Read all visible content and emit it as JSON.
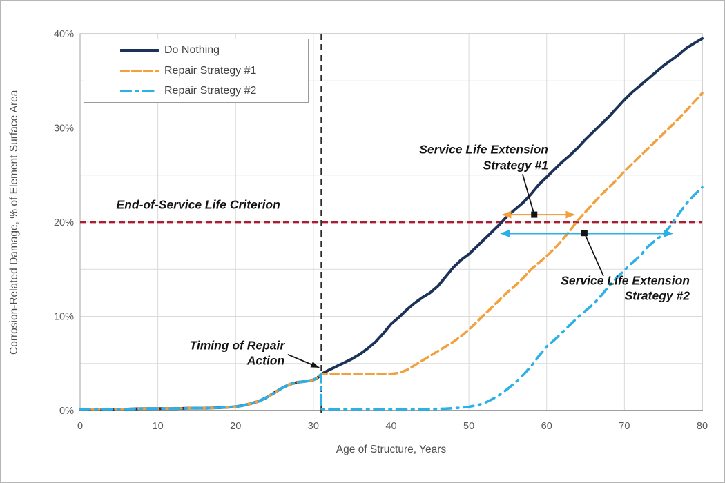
{
  "chart_data": {
    "type": "line",
    "title": "",
    "xlabel": "Age of Structure, Years",
    "ylabel": "Corrosion-Related Damage, % of Element Surface Area",
    "xlim": [
      0,
      80
    ],
    "ylim": [
      0,
      40
    ],
    "x_ticks": [
      0,
      10,
      20,
      30,
      40,
      50,
      60,
      70,
      80
    ],
    "y_ticks": [
      {
        "value": 0,
        "label": "0%"
      },
      {
        "value": 10,
        "label": "10%"
      },
      {
        "value": 20,
        "label": "20%"
      },
      {
        "value": 30,
        "label": "30%"
      },
      {
        "value": 40,
        "label": "40%"
      }
    ],
    "grid": {
      "on": true,
      "x_interval": 10,
      "y_interval": 5,
      "color": "#dadada"
    },
    "axis_colors": {
      "border": "#bfbfbf",
      "baseline": "#8a8a8a",
      "tick_text": "#595959",
      "title_text": "#4d4d4d"
    },
    "legend_position": "top-left",
    "series": [
      {
        "name": "Do Nothing",
        "color": "#1c3258",
        "style": "solid",
        "width": 4,
        "points": [
          [
            0,
            0.15
          ],
          [
            2,
            0.15
          ],
          [
            4,
            0.15
          ],
          [
            6,
            0.15
          ],
          [
            8,
            0.2
          ],
          [
            10,
            0.2
          ],
          [
            12,
            0.2
          ],
          [
            14,
            0.25
          ],
          [
            16,
            0.25
          ],
          [
            18,
            0.3
          ],
          [
            19,
            0.35
          ],
          [
            20,
            0.4
          ],
          [
            21,
            0.55
          ],
          [
            22,
            0.75
          ],
          [
            23,
            1.0
          ],
          [
            24,
            1.4
          ],
          [
            25,
            1.9
          ],
          [
            26,
            2.4
          ],
          [
            27,
            2.8
          ],
          [
            28,
            3.0
          ],
          [
            29,
            3.1
          ],
          [
            30,
            3.25
          ],
          [
            30.5,
            3.45
          ],
          [
            31,
            3.85
          ],
          [
            32,
            4.3
          ],
          [
            33,
            4.7
          ],
          [
            34,
            5.1
          ],
          [
            35,
            5.5
          ],
          [
            36,
            6.0
          ],
          [
            37,
            6.6
          ],
          [
            38,
            7.3
          ],
          [
            39,
            8.2
          ],
          [
            40,
            9.2
          ],
          [
            41,
            9.9
          ],
          [
            42,
            10.7
          ],
          [
            43,
            11.4
          ],
          [
            44,
            12.0
          ],
          [
            45,
            12.5
          ],
          [
            46,
            13.2
          ],
          [
            47,
            14.2
          ],
          [
            48,
            15.2
          ],
          [
            49,
            16.0
          ],
          [
            50,
            16.6
          ],
          [
            51,
            17.4
          ],
          [
            52,
            18.2
          ],
          [
            53,
            19.0
          ],
          [
            54,
            19.8
          ],
          [
            55,
            20.7
          ],
          [
            56,
            21.4
          ],
          [
            57,
            22.1
          ],
          [
            58,
            23.0
          ],
          [
            59,
            24.0
          ],
          [
            60,
            24.8
          ],
          [
            61,
            25.6
          ],
          [
            62,
            26.4
          ],
          [
            63,
            27.1
          ],
          [
            64,
            27.9
          ],
          [
            65,
            28.8
          ],
          [
            66,
            29.6
          ],
          [
            67,
            30.4
          ],
          [
            68,
            31.2
          ],
          [
            69,
            32.1
          ],
          [
            70,
            33.0
          ],
          [
            71,
            33.8
          ],
          [
            72,
            34.5
          ],
          [
            73,
            35.2
          ],
          [
            74,
            35.9
          ],
          [
            75,
            36.6
          ],
          [
            76,
            37.2
          ],
          [
            77,
            37.8
          ],
          [
            78,
            38.5
          ],
          [
            79,
            39.0
          ],
          [
            80,
            39.5
          ]
        ]
      },
      {
        "name": "Repair Strategy #1",
        "color": "#f2a13d",
        "style": "dashed",
        "width": 3.6,
        "points": [
          [
            0,
            0.15
          ],
          [
            2,
            0.15
          ],
          [
            4,
            0.15
          ],
          [
            6,
            0.15
          ],
          [
            8,
            0.2
          ],
          [
            10,
            0.2
          ],
          [
            12,
            0.2
          ],
          [
            14,
            0.25
          ],
          [
            16,
            0.25
          ],
          [
            18,
            0.3
          ],
          [
            19,
            0.35
          ],
          [
            20,
            0.4
          ],
          [
            21,
            0.55
          ],
          [
            22,
            0.75
          ],
          [
            23,
            1.0
          ],
          [
            24,
            1.4
          ],
          [
            25,
            1.9
          ],
          [
            26,
            2.4
          ],
          [
            27,
            2.8
          ],
          [
            28,
            3.0
          ],
          [
            29,
            3.1
          ],
          [
            30,
            3.25
          ],
          [
            30.5,
            3.45
          ],
          [
            31,
            3.85
          ],
          [
            31.5,
            3.9
          ],
          [
            33,
            3.9
          ],
          [
            35,
            3.9
          ],
          [
            37,
            3.9
          ],
          [
            39,
            3.9
          ],
          [
            40,
            3.9
          ],
          [
            41,
            4.0
          ],
          [
            42,
            4.3
          ],
          [
            43,
            4.8
          ],
          [
            44,
            5.3
          ],
          [
            45,
            5.8
          ],
          [
            46,
            6.3
          ],
          [
            47,
            6.8
          ],
          [
            48,
            7.3
          ],
          [
            49,
            7.9
          ],
          [
            50,
            8.6
          ],
          [
            51,
            9.4
          ],
          [
            52,
            10.2
          ],
          [
            53,
            11.0
          ],
          [
            54,
            11.8
          ],
          [
            55,
            12.6
          ],
          [
            56,
            13.3
          ],
          [
            57,
            14.1
          ],
          [
            58,
            15.0
          ],
          [
            59,
            15.7
          ],
          [
            60,
            16.4
          ],
          [
            61,
            17.2
          ],
          [
            62,
            18.1
          ],
          [
            63,
            19.1
          ],
          [
            64,
            20.2
          ],
          [
            65,
            21.1
          ],
          [
            66,
            22.0
          ],
          [
            67,
            22.9
          ],
          [
            68,
            23.7
          ],
          [
            69,
            24.5
          ],
          [
            70,
            25.4
          ],
          [
            71,
            26.2
          ],
          [
            72,
            27.0
          ],
          [
            73,
            27.8
          ],
          [
            74,
            28.6
          ],
          [
            75,
            29.4
          ],
          [
            76,
            30.2
          ],
          [
            77,
            31.0
          ],
          [
            78,
            31.9
          ],
          [
            79,
            32.8
          ],
          [
            80,
            33.7
          ]
        ]
      },
      {
        "name": "Repair Strategy #2",
        "color": "#2bb0e8",
        "style": "dash-dot",
        "width": 3.6,
        "points": [
          [
            0,
            0.15
          ],
          [
            2,
            0.15
          ],
          [
            4,
            0.15
          ],
          [
            6,
            0.15
          ],
          [
            8,
            0.2
          ],
          [
            10,
            0.2
          ],
          [
            12,
            0.2
          ],
          [
            14,
            0.25
          ],
          [
            16,
            0.25
          ],
          [
            18,
            0.3
          ],
          [
            19,
            0.35
          ],
          [
            20,
            0.4
          ],
          [
            21,
            0.55
          ],
          [
            22,
            0.75
          ],
          [
            23,
            1.0
          ],
          [
            24,
            1.4
          ],
          [
            25,
            1.9
          ],
          [
            26,
            2.4
          ],
          [
            27,
            2.8
          ],
          [
            28,
            3.0
          ],
          [
            29,
            3.1
          ],
          [
            30,
            3.25
          ],
          [
            30.5,
            3.45
          ],
          [
            31,
            3.85
          ],
          [
            31,
            0.15
          ],
          [
            33,
            0.15
          ],
          [
            36,
            0.15
          ],
          [
            39,
            0.15
          ],
          [
            42,
            0.15
          ],
          [
            45,
            0.15
          ],
          [
            47,
            0.2
          ],
          [
            49,
            0.3
          ],
          [
            50,
            0.4
          ],
          [
            51,
            0.55
          ],
          [
            52,
            0.8
          ],
          [
            53,
            1.2
          ],
          [
            54,
            1.7
          ],
          [
            55,
            2.3
          ],
          [
            56,
            3.0
          ],
          [
            57,
            3.8
          ],
          [
            58,
            4.7
          ],
          [
            59,
            5.8
          ],
          [
            60,
            6.8
          ],
          [
            61,
            7.5
          ],
          [
            62,
            8.3
          ],
          [
            63,
            9.1
          ],
          [
            64,
            9.9
          ],
          [
            65,
            10.6
          ],
          [
            66,
            11.3
          ],
          [
            67,
            12.2
          ],
          [
            68,
            13.2
          ],
          [
            69,
            14.1
          ],
          [
            70,
            14.9
          ],
          [
            71,
            15.7
          ],
          [
            72,
            16.4
          ],
          [
            73,
            17.4
          ],
          [
            74,
            18.1
          ],
          [
            75,
            18.7
          ],
          [
            76,
            19.7
          ],
          [
            77,
            20.9
          ],
          [
            78,
            22.0
          ],
          [
            79,
            22.9
          ],
          [
            80,
            23.7
          ]
        ]
      }
    ],
    "reference_lines": [
      {
        "orientation": "horizontal",
        "value": 20,
        "color": "#a81e32",
        "style": "dashed",
        "label": "End-of-Service Life Criterion"
      },
      {
        "orientation": "vertical",
        "value": 31,
        "color": "#2b2b2b",
        "style": "dashed",
        "label": "Timing of Repair Action"
      }
    ],
    "extension_arrows": [
      {
        "name": "service-life-extension-strategy-1",
        "x_start": 54.2,
        "x_end": 63.7,
        "y": 20.8,
        "color": "#f2a13d",
        "double_headed": true
      },
      {
        "name": "service-life-extension-strategy-2",
        "x_start": 54.0,
        "x_end": 76.3,
        "y": 18.8,
        "color": "#2bb0e8",
        "double_headed": true
      }
    ],
    "leaders": [
      {
        "from": [
          56.9,
          25.1
        ],
        "to": [
          58.4,
          20.8
        ],
        "marker": "square",
        "color": "#141414"
      },
      {
        "from": [
          67.3,
          14.3
        ],
        "to": [
          64.85,
          18.85
        ],
        "marker": "square",
        "color": "#141414"
      },
      {
        "from": [
          26.7,
          5.95
        ],
        "to": [
          30.75,
          4.55
        ],
        "marker": "arrow",
        "color": "#141414"
      }
    ],
    "annotations": [
      {
        "id": "end-of-service-label",
        "lines": [
          "End-of-Service Life Criterion"
        ],
        "x": 15.2,
        "y": 21.8,
        "h_align": "center"
      },
      {
        "id": "strategy-1-label",
        "lines": [
          "Service Life Extension",
          "Strategy #1"
        ],
        "x": 60.2,
        "y": 26.85,
        "h_align": "right"
      },
      {
        "id": "strategy-2-label",
        "lines": [
          "Service Life Extension",
          "Strategy #2"
        ],
        "x": 78.4,
        "y": 13.0,
        "h_align": "right"
      },
      {
        "id": "timing-label",
        "lines": [
          "Timing of Repair",
          "Action"
        ],
        "x": 26.3,
        "y": 6.1,
        "h_align": "right"
      }
    ]
  }
}
